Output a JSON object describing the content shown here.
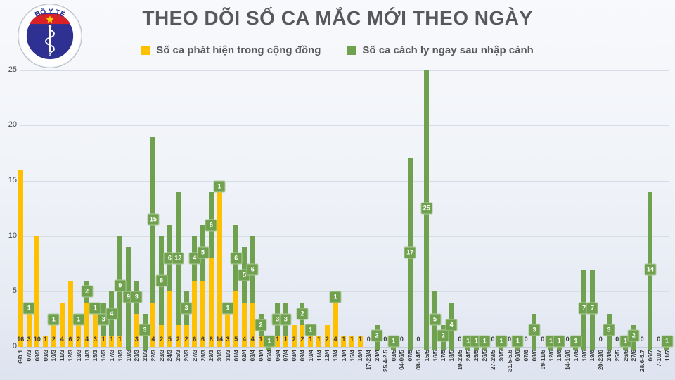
{
  "slide": {
    "title": "THEO DÕI SỐ CA MẮC MỚI THEO NGÀY"
  },
  "logo": {
    "top_text": "BỘ Y TẾ",
    "bottom_text": "MINISTRY OF HEALTH"
  },
  "legend": [
    {
      "label": "Số ca phát hiện trong cộng đồng",
      "color": "#FFC000"
    },
    {
      "label": "Số ca cách ly ngay sau nhập cảnh",
      "color": "#70A14E"
    }
  ],
  "chart_data": {
    "type": "bar",
    "stacked": true,
    "title": "THEO DÕI SỐ CA MẮC MỚI THEO NGÀY",
    "xlabel": "",
    "ylabel": "",
    "ylim": [
      0,
      25
    ],
    "yticks": [
      0,
      5,
      10,
      15,
      20,
      25
    ],
    "grid": true,
    "legend_position": "top",
    "value_label_color": "#3B3B3B",
    "label_box_text_color": "#FFFFFF",
    "categories": [
      "GĐ 1",
      "07/3",
      "08/3",
      "09/3",
      "10/3",
      "11/3",
      "12/3",
      "13/3",
      "14/3",
      "15/3",
      "16/3",
      "17/3",
      "18/3",
      "19/3",
      "20/3",
      "21/3",
      "22/3",
      "23/3",
      "24/3",
      "25/3",
      "26/3",
      "27/3",
      "28/3",
      "29/3",
      "30/3",
      "31/3",
      "01/4",
      "02/4",
      "03/4",
      "04/4",
      "05/4",
      "06/4",
      "07/4",
      "08/4",
      "09/4",
      "10/4",
      "11/4",
      "12/4",
      "13/4",
      "14/4",
      "15/4",
      "16/4",
      "17-23/4",
      "24/4",
      "25.4-2.5",
      "03/5",
      "04-06/5",
      "07/5",
      "08-14/5",
      "15/5",
      "16/5",
      "17/5",
      "18/5",
      "19-23/5",
      "24/5",
      "25/5",
      "26/5",
      "27-29/5",
      "30/5",
      "31.5-5.6",
      "06/6",
      "07/6",
      "08/6",
      "09-11/6",
      "12/6",
      "13/6",
      "14-16/6",
      "17/6",
      "18/6",
      "19/6",
      "20-23/6",
      "24/6",
      "25/5",
      "26/6",
      "27/6",
      "28.6-5.7",
      "06/7",
      "7-10/7",
      "11/7"
    ],
    "series": [
      {
        "name": "Số ca phát hiện trong cộng đồng",
        "color": "#FFC000",
        "values": [
          16,
          3,
          10,
          1,
          2,
          4,
          6,
          2,
          4,
          3,
          1,
          1,
          1,
          0,
          3,
          0,
          4,
          2,
          5,
          2,
          2,
          6,
          6,
          8,
          14,
          3,
          5,
          4,
          4,
          1,
          0,
          1,
          1,
          2,
          2,
          1,
          1,
          2,
          4,
          1,
          1,
          1,
          0,
          0,
          0,
          0,
          0,
          0,
          0,
          0,
          0,
          0,
          0,
          0,
          0,
          0,
          0,
          0,
          0,
          0,
          0,
          0,
          0,
          0,
          0,
          0,
          0,
          0,
          0,
          0,
          0,
          0,
          0,
          0,
          0,
          0,
          0,
          0,
          0
        ]
      },
      {
        "name": "Số ca cách ly ngay sau nhập cảnh",
        "color": "#70A14E",
        "values": [
          0,
          1,
          0,
          0,
          1,
          0,
          0,
          1,
          2,
          1,
          3,
          4,
          9,
          9,
          3,
          3,
          15,
          8,
          6,
          12,
          3,
          4,
          5,
          6,
          1,
          1,
          6,
          5,
          6,
          2,
          1,
          3,
          3,
          0,
          2,
          1,
          0,
          0,
          1,
          0,
          0,
          0,
          0,
          2,
          0,
          1,
          0,
          17,
          0,
          25,
          5,
          2,
          4,
          0,
          1,
          1,
          1,
          0,
          1,
          0,
          1,
          0,
          3,
          0,
          1,
          1,
          0,
          1,
          7,
          7,
          0,
          3,
          0,
          1,
          2,
          0,
          14,
          0,
          1
        ]
      }
    ]
  }
}
